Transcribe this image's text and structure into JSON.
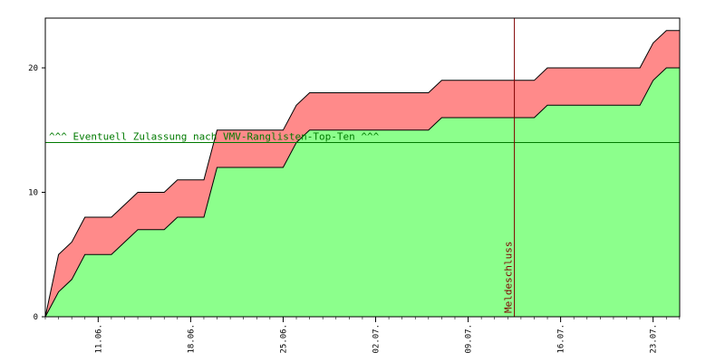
{
  "chart_data": {
    "type": "area",
    "x_ticks": [
      "11.06.",
      "18.06.",
      "25.06.",
      "02.07.",
      "09.07.",
      "16.07.",
      "23.07."
    ],
    "y_ticks": [
      "0",
      "10",
      "20"
    ],
    "ylim": [
      0,
      24
    ],
    "grid": false,
    "x_days": [
      0,
      1,
      2,
      3,
      4,
      5,
      6,
      7,
      8,
      9,
      10,
      11,
      12,
      13,
      14,
      15,
      16,
      17,
      18,
      19,
      20,
      21,
      22,
      23,
      24,
      25,
      26,
      27,
      28,
      29,
      30,
      31,
      32,
      33,
      34,
      35,
      36,
      37,
      38,
      39,
      40,
      41,
      42,
      43,
      44,
      45,
      46,
      47,
      48
    ],
    "series": [
      {
        "values": [
          0,
          2,
          3,
          5,
          5,
          5,
          6,
          7,
          7,
          7,
          8,
          8,
          8,
          12,
          12,
          12,
          12,
          12,
          12,
          14,
          15,
          15,
          15,
          15,
          15,
          15,
          15,
          15,
          15,
          15,
          16,
          16,
          16,
          16,
          16,
          16,
          16,
          16,
          17,
          17,
          17,
          17,
          17,
          17,
          17,
          17,
          19,
          20,
          20
        ],
        "color": "#8cff8c"
      },
      {
        "values": [
          0,
          5,
          6,
          8,
          8,
          8,
          9,
          10,
          10,
          10,
          11,
          11,
          11,
          15,
          15,
          15,
          15,
          15,
          15,
          17,
          18,
          18,
          18,
          18,
          18,
          18,
          18,
          18,
          18,
          18,
          19,
          19,
          19,
          19,
          19,
          19,
          19,
          19,
          20,
          20,
          20,
          20,
          20,
          20,
          20,
          20,
          22,
          23,
          23
        ],
        "color": "#ff8a8a"
      }
    ],
    "threshold": {
      "y": 14,
      "label": "^^^ Eventuell Zulassung nach VMV-Ranglisten-Top-Ten ^^^",
      "color": "#007a00"
    },
    "deadline": {
      "label": "Meldeschluss",
      "color": "#800000"
    }
  }
}
